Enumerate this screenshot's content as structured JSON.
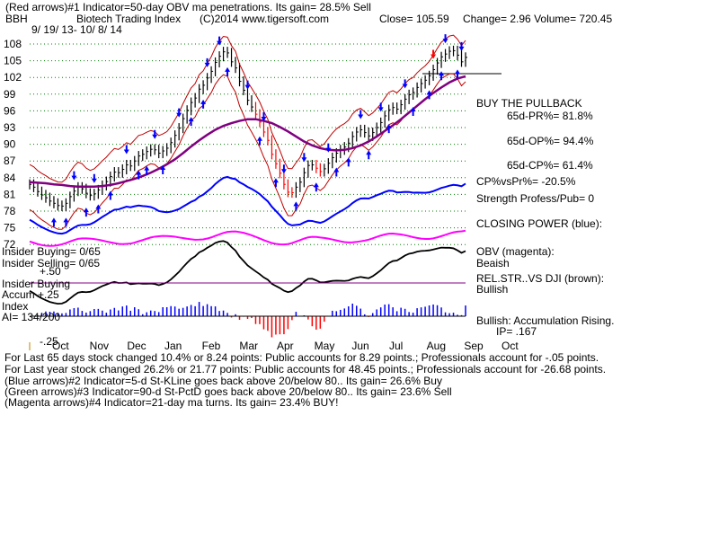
{
  "header": {
    "line1": "(Red arrows)#1 Indicator=50-day OBV ma penetrations. Its gain= 28.5% Sell",
    "symbol": "BBH",
    "name": "Biotech Trading Index",
    "copyright": "(C)2014 www.tigersoft.com",
    "close": "Close= 105.59",
    "change": "Change= 2.96 Volume= 720.45",
    "dates": "9/ 19/ 13- 10/ 8/ 14"
  },
  "right_panel": {
    "buy_title": "BUY THE PULLBACK",
    "pr": "65d-PR%= 81.8%",
    "op": "65d-OP%= 94.4%",
    "cp": "65d-CP%= 61.4%",
    "cpvspr": "CP%vsPr%= -20.5%",
    "strength": "Strength Profess/Pub= 0",
    "closing_power": "CLOSING POWER (blue):",
    "obv": "OBV (magenta):",
    "obv_state": "Beaish",
    "relstr": "REL.STR..VS DJI (brown):",
    "relstr_state": "Bullish",
    "accum": "Bullish: Accumulation Rising.",
    "ip": "IP= .167"
  },
  "left_panel": {
    "insider_buying": "Insider Buying= 0/65",
    "insider_selling": "Insider Selling= 0/65",
    "plus50": "+.50",
    "insider_buying2": "Insider Buying",
    "accum": "Accum +.25",
    "index": "Index",
    "ai": "AI= 134/200",
    "minus25": "-.25"
  },
  "footer": {
    "line1": "For Last 65 days stock changed 10.4% or 8.24 points: Public accounts for 8.29 points.; Professionals account for -.05 points.",
    "line2": "For Last year stock changed 26.2% or 21.77 points: Public accounts for 48.45 points.; Professionals account for -26.68 points.",
    "line3": "(Blue arrows)#2 Indicator=5-d St-KLine goes back above 20/below 80.. Its gain= 26.6% Buy",
    "line4": "(Green arrows)#3 Indicator=90-d St-PctD goes back above 20/below 80.. Its gain= 23.6% Sell",
    "line5": "(Magenta arrows)#4 Indicator=21-day ma turns. Its gain= 23.4% BUY!"
  },
  "colors": {
    "price_bar": "#000000",
    "up_bar": "#000000",
    "down_bar": "#ff0000",
    "ma_50": "#800080",
    "bands": "#c00000",
    "closing_power": "#0000ff",
    "obv": "#ff00ff",
    "rel_str": "#000000",
    "accum_pos": "#0000ff",
    "accum_neg": "#ff0000",
    "grid": "#008000"
  },
  "chart_data": {
    "type": "line",
    "title": "Biotech Trading Index",
    "y_ticks": [
      "108",
      "105",
      "102",
      "99",
      "96",
      "93",
      "90",
      "87",
      "84",
      "81",
      "78",
      "75",
      "72"
    ],
    "x_ticks": [
      "Oct",
      "Nov",
      "Dec",
      "Jan",
      "Feb",
      "Mar",
      "Apr",
      "May",
      "Jun",
      "Jul",
      "Aug",
      "Sep",
      "Oct"
    ],
    "ylim": [
      70.5,
      110
    ],
    "price_close": [
      82.8,
      82.3,
      81.5,
      80.9,
      80.4,
      79.8,
      79.4,
      79.0,
      78.9,
      79.4,
      80.6,
      81.6,
      82.3,
      82.0,
      81.2,
      80.8,
      81.1,
      81.8,
      82.6,
      83.3,
      84.2,
      85.0,
      84.9,
      85.5,
      86.3,
      86.1,
      87.0,
      87.9,
      88.2,
      88.7,
      89.1,
      89.0,
      88.4,
      88.8,
      89.3,
      90.3,
      91.6,
      92.9,
      94.6,
      96.1,
      97.5,
      98.3,
      99.9,
      100.6,
      101.9,
      103.1,
      104.7,
      105.8,
      106.6,
      106.4,
      104.8,
      103.7,
      101.3,
      99.7,
      97.9,
      96.7,
      95.4,
      94.0,
      92.2,
      90.7,
      88.2,
      86.5,
      84.8,
      82.8,
      81.4,
      81.3,
      82.3,
      83.2,
      84.9,
      86.2,
      86.3,
      85.7,
      85.1,
      85.6,
      86.6,
      87.6,
      88.4,
      89.0,
      89.5,
      90.2,
      91.4,
      92.2,
      92.6,
      92.1,
      91.5,
      92.1,
      93.0,
      93.9,
      95.1,
      96.2,
      96.6,
      96.3,
      97.1,
      98.1,
      98.9,
      99.3,
      100.2,
      100.9,
      101.5,
      102.3,
      103.4,
      104.6,
      105.7,
      106.2,
      106.7,
      106.8,
      106.0,
      104.8,
      105.6
    ],
    "ma50": [
      83.2,
      83.1,
      83.0,
      82.8,
      82.7,
      82.5,
      82.4,
      82.4,
      82.4,
      82.5,
      82.7,
      83.0,
      83.4,
      83.8,
      84.3,
      84.9,
      85.6,
      86.4,
      87.3,
      88.4,
      89.6,
      90.7,
      91.7,
      92.6,
      93.3,
      93.8,
      94.2,
      94.5,
      94.5,
      94.2,
      93.8,
      93.1,
      92.3,
      91.4,
      90.5,
      89.8,
      89.3,
      89.0,
      88.9,
      89.0,
      89.3,
      89.8,
      90.5,
      91.4,
      92.4,
      93.4,
      94.5,
      95.7,
      96.9,
      98.1,
      99.2,
      100.2,
      101.1,
      101.8,
      102.2
    ],
    "closing_power_note": "blue line",
    "obv_note": "magenta line",
    "accumulation_index_note": "blue/red histogram"
  }
}
